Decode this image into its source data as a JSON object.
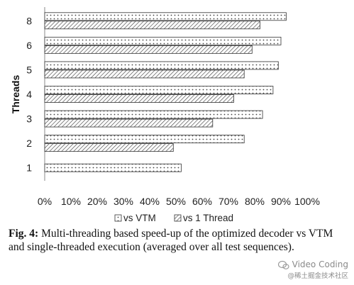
{
  "chart_data": {
    "type": "bar",
    "orientation": "horizontal",
    "ylabel": "Threads",
    "categories": [
      "1",
      "2",
      "3",
      "4",
      "5",
      "6",
      "8"
    ],
    "series": [
      {
        "name": "vs VTM",
        "pattern": "dots",
        "values": [
          52,
          76,
          83,
          87,
          89,
          90,
          92
        ]
      },
      {
        "name": "vs 1 Thread",
        "pattern": "diagonal-hatch",
        "values": [
          null,
          49,
          64,
          72,
          76,
          79,
          82
        ]
      }
    ],
    "xlim": [
      0,
      100
    ],
    "xticks": [
      "0%",
      "10%",
      "20%",
      "30%",
      "40%",
      "50%",
      "60%",
      "70%",
      "80%",
      "90%",
      "100%"
    ],
    "legend_position": "bottom",
    "grid": false
  },
  "caption": {
    "label": "Fig. 4:",
    "text": "Multi-threading based speed-up of the optimized decoder vs VTM and single-threaded execution (averaged over all test sequences)."
  },
  "watermark": {
    "line1": "Video Coding",
    "line2": "@稀土掘金技术社区"
  },
  "colors": {
    "bar_stroke": "#333333",
    "pattern_ink": "#444444",
    "axis": "#888888"
  }
}
